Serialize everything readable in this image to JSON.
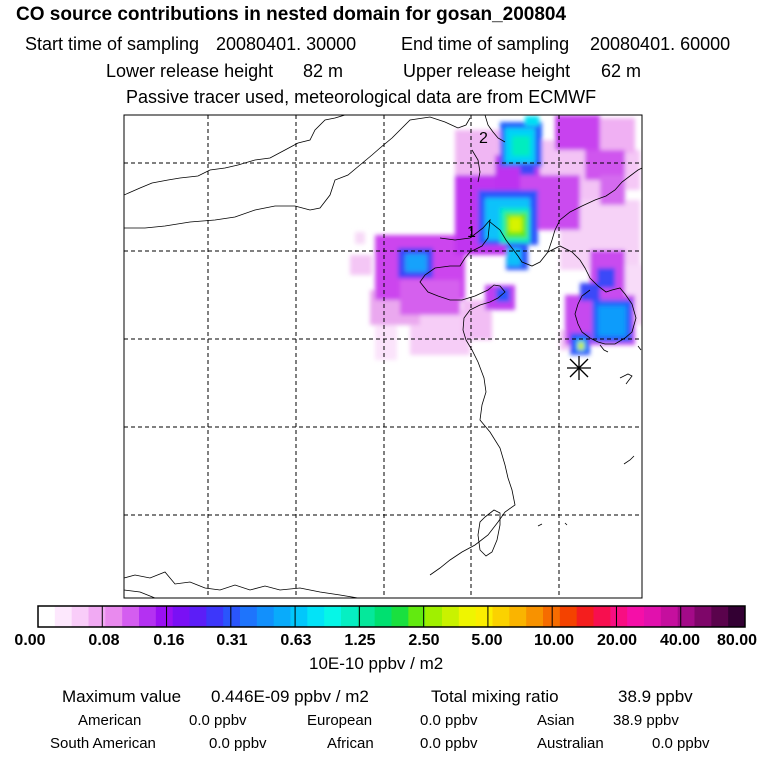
{
  "title": "CO  source contributions in nested domain for gosan_200804",
  "sampling": {
    "start_label": "Start time of sampling",
    "start_value": "20080401. 30000",
    "end_label": "End time of sampling",
    "end_value": "20080401. 60000"
  },
  "release": {
    "lower_label": "Lower release height",
    "lower_value": "82 m",
    "upper_label": "Upper release height",
    "upper_value": "62 m"
  },
  "tracer_note": "Passive tracer used, meteorological data are from ECMWF",
  "map": {
    "labels": [
      "2",
      "1"
    ],
    "receptor_marker": "asterisk-icon"
  },
  "colorbar": {
    "ticks": [
      "0.00",
      "0.08",
      "0.16",
      "0.31",
      "0.63",
      "1.25",
      "2.50",
      "5.00",
      "10.00",
      "20.00",
      "40.00",
      "80.00"
    ],
    "unit": "10E-10 ppbv / m2",
    "colors": [
      "#ffffff",
      "#fde8fd",
      "#f9cdf9",
      "#f1aaf3",
      "#e98aee",
      "#d45df0",
      "#b431f2",
      "#9a10f3",
      "#7a10f5",
      "#5c1ef7",
      "#3d37fa",
      "#2a55fc",
      "#1e74fc",
      "#1290fc",
      "#09abfb",
      "#02c7fb",
      "#03e3f7",
      "#06f6e7",
      "#06efc2",
      "#05e89b",
      "#00e070",
      "#1ae03f",
      "#62ea10",
      "#a0f000",
      "#c9f200",
      "#eff500",
      "#fbee00",
      "#fbd200",
      "#fab400",
      "#f89200",
      "#f66c00",
      "#f44200",
      "#f41e1e",
      "#f70f4f",
      "#f80e82",
      "#f50fa8",
      "#e111ad",
      "#c50f9e",
      "#a30a88",
      "#7e0669",
      "#5a034c",
      "#330033"
    ]
  },
  "stats": {
    "max_label": "Maximum value",
    "max_value": "0.446E-09 ppbv / m2",
    "total_label": "Total mixing ratio",
    "total_value": "38.9 ppbv",
    "regions": [
      {
        "name": "American",
        "value": "0.0 ppbv"
      },
      {
        "name": "European",
        "value": "0.0 ppbv"
      },
      {
        "name": "Asian",
        "value": "38.9 ppbv"
      },
      {
        "name": "South American",
        "value": "0.0 ppbv"
      },
      {
        "name": "African",
        "value": "0.0 ppbv"
      },
      {
        "name": "Australian",
        "value": "0.0 ppbv"
      }
    ]
  }
}
